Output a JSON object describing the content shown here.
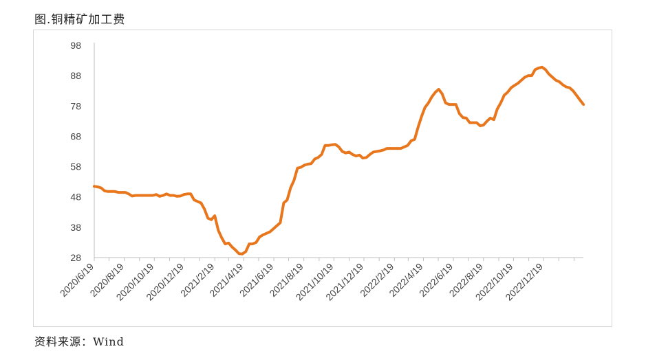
{
  "title": "图.铜精矿加工费",
  "source": "资料来源：Wind",
  "colors": {
    "series": "#E8761C",
    "axis": "#bfbfbf",
    "frame": "#d6d6d6",
    "text": "#444444"
  },
  "chart_data": {
    "type": "line",
    "title": "",
    "xlabel": "",
    "ylabel": "",
    "ylim": [
      28,
      98
    ],
    "yticks": [
      28,
      38,
      48,
      58,
      68,
      78,
      88,
      98
    ],
    "grid": false,
    "legend": "none",
    "x_tick_labels": [
      "2020/6/19",
      "2020/8/19",
      "2020/10/19",
      "2020/12/19",
      "2021/2/19",
      "2021/4/19",
      "2021/6/19",
      "2021/8/19",
      "2021/10/19",
      "2021/12/19",
      "2022/2/19",
      "2022/4/19",
      "2022/6/19",
      "2022/8/19",
      "2022/10/19",
      "2022/12/19"
    ],
    "series": [
      {
        "points": [
          [
            "2020-06-19",
            51.5
          ],
          [
            "2020-06-26",
            51.3
          ],
          [
            "2020-07-03",
            51.0
          ],
          [
            "2020-07-10",
            50.0
          ],
          [
            "2020-07-17",
            49.8
          ],
          [
            "2020-07-24",
            49.8
          ],
          [
            "2020-07-31",
            49.8
          ],
          [
            "2020-08-07",
            49.5
          ],
          [
            "2020-08-14",
            49.5
          ],
          [
            "2020-08-21",
            49.5
          ],
          [
            "2020-08-28",
            49.0
          ],
          [
            "2020-09-04",
            48.3
          ],
          [
            "2020-09-11",
            48.5
          ],
          [
            "2020-09-18",
            48.5
          ],
          [
            "2020-09-25",
            48.5
          ],
          [
            "2020-10-02",
            48.5
          ],
          [
            "2020-10-09",
            48.5
          ],
          [
            "2020-10-16",
            48.5
          ],
          [
            "2020-10-23",
            48.8
          ],
          [
            "2020-10-30",
            48.2
          ],
          [
            "2020-11-06",
            48.5
          ],
          [
            "2020-11-13",
            49.0
          ],
          [
            "2020-11-20",
            48.5
          ],
          [
            "2020-11-27",
            48.5
          ],
          [
            "2020-12-04",
            48.2
          ],
          [
            "2020-12-11",
            48.3
          ],
          [
            "2020-12-18",
            48.8
          ],
          [
            "2020-12-25",
            49.0
          ],
          [
            "2021-01-01",
            49.0
          ],
          [
            "2021-01-08",
            47.0
          ],
          [
            "2021-01-15",
            46.5
          ],
          [
            "2021-01-22",
            46.0
          ],
          [
            "2021-01-29",
            44.0
          ],
          [
            "2021-02-05",
            41.0
          ],
          [
            "2021-02-12",
            40.5
          ],
          [
            "2021-02-19",
            41.8
          ],
          [
            "2021-02-26",
            37.0
          ],
          [
            "2021-03-05",
            34.5
          ],
          [
            "2021-03-12",
            32.5
          ],
          [
            "2021-03-19",
            32.8
          ],
          [
            "2021-03-26",
            31.5
          ],
          [
            "2021-04-02",
            30.5
          ],
          [
            "2021-04-09",
            29.3
          ],
          [
            "2021-04-16",
            29.2
          ],
          [
            "2021-04-23",
            30.0
          ],
          [
            "2021-04-30",
            32.5
          ],
          [
            "2021-05-07",
            32.5
          ],
          [
            "2021-05-14",
            33.0
          ],
          [
            "2021-05-21",
            34.8
          ],
          [
            "2021-05-28",
            35.5
          ],
          [
            "2021-06-04",
            36.0
          ],
          [
            "2021-06-11",
            36.5
          ],
          [
            "2021-06-18",
            37.5
          ],
          [
            "2021-06-25",
            38.5
          ],
          [
            "2021-07-02",
            39.5
          ],
          [
            "2021-07-09",
            46.0
          ],
          [
            "2021-07-16",
            47.0
          ],
          [
            "2021-07-23",
            51.0
          ],
          [
            "2021-07-30",
            53.5
          ],
          [
            "2021-08-06",
            57.5
          ],
          [
            "2021-08-13",
            57.8
          ],
          [
            "2021-08-20",
            58.5
          ],
          [
            "2021-08-27",
            58.8
          ],
          [
            "2021-09-03",
            59.0
          ],
          [
            "2021-09-10",
            60.5
          ],
          [
            "2021-09-17",
            61.0
          ],
          [
            "2021-09-24",
            62.0
          ],
          [
            "2021-10-01",
            65.0
          ],
          [
            "2021-10-08",
            65.0
          ],
          [
            "2021-10-15",
            65.2
          ],
          [
            "2021-10-22",
            65.3
          ],
          [
            "2021-10-29",
            64.5
          ],
          [
            "2021-11-05",
            63.0
          ],
          [
            "2021-11-12",
            62.5
          ],
          [
            "2021-11-19",
            62.8
          ],
          [
            "2021-11-26",
            62.0
          ],
          [
            "2021-12-03",
            61.5
          ],
          [
            "2021-12-10",
            61.8
          ],
          [
            "2021-12-17",
            60.8
          ],
          [
            "2021-12-24",
            61.0
          ],
          [
            "2021-12-31",
            62.0
          ],
          [
            "2022-01-07",
            62.8
          ],
          [
            "2022-01-14",
            63.0
          ],
          [
            "2022-01-21",
            63.2
          ],
          [
            "2022-01-28",
            63.5
          ],
          [
            "2022-02-04",
            64.0
          ],
          [
            "2022-02-11",
            64.0
          ],
          [
            "2022-02-18",
            64.0
          ],
          [
            "2022-02-25",
            64.0
          ],
          [
            "2022-03-04",
            64.0
          ],
          [
            "2022-03-11",
            64.5
          ],
          [
            "2022-03-18",
            65.0
          ],
          [
            "2022-03-25",
            66.5
          ],
          [
            "2022-04-01",
            67.0
          ],
          [
            "2022-04-08",
            71.0
          ],
          [
            "2022-04-15",
            74.5
          ],
          [
            "2022-04-22",
            77.5
          ],
          [
            "2022-04-29",
            79.0
          ],
          [
            "2022-05-06",
            81.0
          ],
          [
            "2022-05-13",
            82.5
          ],
          [
            "2022-05-20",
            83.5
          ],
          [
            "2022-05-27",
            82.0
          ],
          [
            "2022-06-03",
            79.0
          ],
          [
            "2022-06-10",
            78.5
          ],
          [
            "2022-06-17",
            78.5
          ],
          [
            "2022-06-24",
            78.5
          ],
          [
            "2022-07-01",
            75.5
          ],
          [
            "2022-07-08",
            74.2
          ],
          [
            "2022-07-15",
            74.0
          ],
          [
            "2022-07-22",
            72.5
          ],
          [
            "2022-07-29",
            72.5
          ],
          [
            "2022-08-05",
            72.5
          ],
          [
            "2022-08-12",
            71.5
          ],
          [
            "2022-08-19",
            71.7
          ],
          [
            "2022-08-26",
            73.0
          ],
          [
            "2022-09-02",
            74.0
          ],
          [
            "2022-09-09",
            73.5
          ],
          [
            "2022-09-16",
            77.0
          ],
          [
            "2022-09-23",
            79.0
          ],
          [
            "2022-09-30",
            81.5
          ],
          [
            "2022-10-07",
            82.5
          ],
          [
            "2022-10-14",
            84.0
          ],
          [
            "2022-10-21",
            84.8
          ],
          [
            "2022-10-28",
            85.5
          ],
          [
            "2022-11-04",
            86.5
          ],
          [
            "2022-11-11",
            87.5
          ],
          [
            "2022-11-18",
            88.0
          ],
          [
            "2022-11-25",
            88.0
          ],
          [
            "2022-12-02",
            90.0
          ],
          [
            "2022-12-09",
            90.5
          ],
          [
            "2022-12-16",
            90.8
          ],
          [
            "2022-12-23",
            90.0
          ],
          [
            "2022-12-30",
            88.5
          ],
          [
            "2023-01-06",
            87.5
          ],
          [
            "2023-01-13",
            86.5
          ],
          [
            "2023-01-20",
            86.0
          ],
          [
            "2023-01-27",
            85.0
          ],
          [
            "2023-02-03",
            84.3
          ],
          [
            "2023-02-10",
            84.0
          ],
          [
            "2023-02-17",
            83.0
          ],
          [
            "2023-02-24",
            81.5
          ],
          [
            "2023-03-03",
            80.0
          ],
          [
            "2023-03-10",
            78.5
          ]
        ]
      }
    ]
  }
}
